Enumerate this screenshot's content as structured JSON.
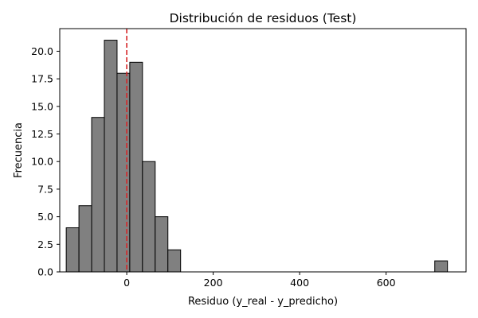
{
  "chart_data": {
    "type": "bar",
    "subtype": "histogram",
    "title": "Distribución de residuos (Test)",
    "xlabel": "Residuo (y_real - y_predicho)",
    "ylabel": "Frecuencia",
    "xlim": [
      -155,
      785
    ],
    "ylim": [
      0,
      22.05
    ],
    "xticks": [
      0,
      200,
      400,
      600
    ],
    "xtick_labels": [
      "0",
      "200",
      "400",
      "600"
    ],
    "yticks": [
      0,
      2.5,
      5,
      7.5,
      10,
      12.5,
      15,
      17.5,
      20
    ],
    "ytick_labels": [
      "0.0",
      "2.5",
      "5.0",
      "7.5",
      "10.0",
      "12.5",
      "15.0",
      "17.5",
      "20.0"
    ],
    "bin_width": 29.4,
    "bins": [
      {
        "start": -140.0,
        "end": -110.6,
        "count": 4
      },
      {
        "start": -110.6,
        "end": -81.2,
        "count": 6
      },
      {
        "start": -81.2,
        "end": -51.8,
        "count": 14
      },
      {
        "start": -51.8,
        "end": -22.4,
        "count": 21
      },
      {
        "start": -22.4,
        "end": 7.0,
        "count": 18
      },
      {
        "start": 7.0,
        "end": 36.4,
        "count": 19
      },
      {
        "start": 36.4,
        "end": 65.8,
        "count": 10
      },
      {
        "start": 65.8,
        "end": 95.2,
        "count": 5
      },
      {
        "start": 95.2,
        "end": 124.6,
        "count": 2
      },
      {
        "start": 124.6,
        "end": 154.0,
        "count": 0
      },
      {
        "start": 154.0,
        "end": 183.4,
        "count": 0
      },
      {
        "start": 183.4,
        "end": 212.8,
        "count": 0
      },
      {
        "start": 212.8,
        "end": 242.2,
        "count": 0
      },
      {
        "start": 242.2,
        "end": 271.6,
        "count": 0
      },
      {
        "start": 271.6,
        "end": 301.0,
        "count": 0
      },
      {
        "start": 301.0,
        "end": 330.4,
        "count": 0
      },
      {
        "start": 330.4,
        "end": 359.8,
        "count": 0
      },
      {
        "start": 359.8,
        "end": 389.2,
        "count": 0
      },
      {
        "start": 389.2,
        "end": 418.6,
        "count": 0
      },
      {
        "start": 418.6,
        "end": 448.0,
        "count": 0
      },
      {
        "start": 448.0,
        "end": 477.4,
        "count": 0
      },
      {
        "start": 477.4,
        "end": 506.8,
        "count": 0
      },
      {
        "start": 506.8,
        "end": 536.2,
        "count": 0
      },
      {
        "start": 536.2,
        "end": 565.6,
        "count": 0
      },
      {
        "start": 565.6,
        "end": 595.0,
        "count": 0
      },
      {
        "start": 595.0,
        "end": 624.4,
        "count": 0
      },
      {
        "start": 624.4,
        "end": 653.8,
        "count": 0
      },
      {
        "start": 653.8,
        "end": 683.2,
        "count": 0
      },
      {
        "start": 683.2,
        "end": 712.6,
        "count": 0
      },
      {
        "start": 712.6,
        "end": 742.0,
        "count": 1
      }
    ],
    "reference_line": {
      "x": 0,
      "style": "dashed",
      "color": "#d62728"
    },
    "bar_color": "#808080",
    "bar_edge_color": "#000000",
    "grid": false,
    "legend": "none"
  }
}
